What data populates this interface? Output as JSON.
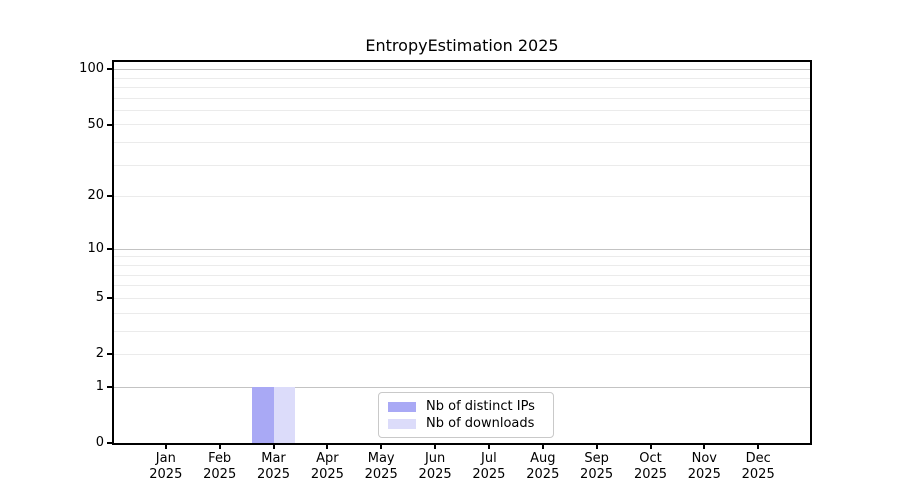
{
  "chart_data": {
    "type": "bar",
    "title": "EntropyEstimation 2025",
    "categories": [
      "Jan 2025",
      "Feb 2025",
      "Mar 2025",
      "Apr 2025",
      "May 2025",
      "Jun 2025",
      "Jul 2025",
      "Aug 2025",
      "Sep 2025",
      "Oct 2025",
      "Nov 2025",
      "Dec 2025"
    ],
    "x_tick_months": [
      "Jan",
      "Feb",
      "Mar",
      "Apr",
      "May",
      "Jun",
      "Jul",
      "Aug",
      "Sep",
      "Oct",
      "Nov",
      "Dec"
    ],
    "x_tick_year": "2025",
    "series": [
      {
        "name": "Nb of distinct IPs",
        "color": "#a9a9f5",
        "values": [
          0,
          0,
          1,
          0,
          0,
          0,
          0,
          0,
          0,
          0,
          0,
          0
        ]
      },
      {
        "name": "Nb of downloads",
        "color": "#dcdcfa",
        "values": [
          0,
          0,
          1,
          0,
          0,
          0,
          0,
          0,
          0,
          0,
          0,
          0
        ]
      }
    ],
    "y_axis": {
      "scale": "log10(value+1)",
      "min": 0,
      "max": 112,
      "tick_values": [
        0,
        1,
        2,
        5,
        10,
        20,
        50,
        100
      ],
      "tick_labels": [
        "0",
        "1",
        "2",
        "5",
        "10",
        "20",
        "50",
        "100"
      ],
      "major_grid_values": [
        1,
        10,
        100
      ],
      "minor_grid_values": [
        2,
        3,
        4,
        5,
        6,
        7,
        8,
        9,
        20,
        30,
        40,
        50,
        60,
        70,
        80,
        90
      ]
    },
    "legend": {
      "position": "lower center",
      "entries": [
        "Nb of distinct IPs",
        "Nb of downloads"
      ]
    },
    "grid": true,
    "colors": {
      "background": "#ffffff",
      "spine": "#000000",
      "major_grid": "#c3c3c3",
      "minor_grid": "#ebebeb",
      "text": "#000000"
    }
  }
}
